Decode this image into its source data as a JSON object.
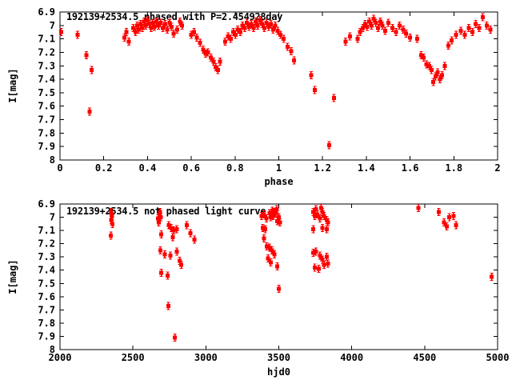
{
  "figure": {
    "background_color": "#ffffff",
    "axis_color": "#000000",
    "point_color": "#ff0000"
  },
  "chart_data": [
    {
      "type": "scatter",
      "title": "192139+2534.5 phased with P=2.454928day",
      "xlabel": "phase",
      "ylabel": "I[mag]",
      "xlim": [
        0,
        2
      ],
      "ylim_top_to_bottom": [
        6.9,
        8
      ],
      "grid": false,
      "legend": "none",
      "marker": "red-square-with-errorbar",
      "xticks": [
        0,
        0.2,
        0.4,
        0.6,
        0.8,
        1,
        1.2,
        1.4,
        1.6,
        1.8,
        2
      ],
      "xtick_labels": [
        "0",
        "0.2",
        "0.4",
        "0.6",
        "0.8",
        "1",
        "1.2",
        "1.4",
        "1.6",
        "1.8",
        "2"
      ],
      "yticks": [
        6.9,
        7,
        7.1,
        7.2,
        7.3,
        7.4,
        7.5,
        7.6,
        7.7,
        7.8,
        7.9,
        8
      ],
      "ytick_labels": [
        "6.9",
        "7",
        "7.1",
        "7.2",
        "7.3",
        "7.4",
        "7.5",
        "7.6",
        "7.7",
        "7.8",
        "7.9",
        "8"
      ],
      "points": [
        [
          0.005,
          7.05
        ],
        [
          0.08,
          7.07
        ],
        [
          0.12,
          7.22
        ],
        [
          0.135,
          7.64
        ],
        [
          0.145,
          7.33
        ],
        [
          0.295,
          7.09
        ],
        [
          0.303,
          7.05
        ],
        [
          0.315,
          7.12
        ],
        [
          0.335,
          7.02
        ],
        [
          0.345,
          7.05
        ],
        [
          0.352,
          7.0
        ],
        [
          0.36,
          7.03
        ],
        [
          0.368,
          6.99
        ],
        [
          0.376,
          7.02
        ],
        [
          0.384,
          6.97
        ],
        [
          0.392,
          7.0
        ],
        [
          0.4,
          6.96
        ],
        [
          0.408,
          6.99
        ],
        [
          0.416,
          7.02
        ],
        [
          0.424,
          6.98
        ],
        [
          0.432,
          7.01
        ],
        [
          0.44,
          6.97
        ],
        [
          0.45,
          7.0
        ],
        [
          0.46,
          6.98
        ],
        [
          0.47,
          7.02
        ],
        [
          0.48,
          6.99
        ],
        [
          0.49,
          7.03
        ],
        [
          0.5,
          6.98
        ],
        [
          0.51,
          7.01
        ],
        [
          0.52,
          7.06
        ],
        [
          0.535,
          7.03
        ],
        [
          0.548,
          6.97
        ],
        [
          0.558,
          7.0
        ],
        [
          0.6,
          7.07
        ],
        [
          0.613,
          7.05
        ],
        [
          0.625,
          7.09
        ],
        [
          0.64,
          7.13
        ],
        [
          0.654,
          7.18
        ],
        [
          0.665,
          7.21
        ],
        [
          0.676,
          7.2
        ],
        [
          0.69,
          7.24
        ],
        [
          0.702,
          7.27
        ],
        [
          0.712,
          7.31
        ],
        [
          0.722,
          7.33
        ],
        [
          0.732,
          7.27
        ],
        [
          0.755,
          7.12
        ],
        [
          0.768,
          7.08
        ],
        [
          0.78,
          7.1
        ],
        [
          0.792,
          7.05
        ],
        [
          0.802,
          7.07
        ],
        [
          0.812,
          7.03
        ],
        [
          0.824,
          7.05
        ],
        [
          0.834,
          7.0
        ],
        [
          0.844,
          7.02
        ],
        [
          0.854,
          6.98
        ],
        [
          0.864,
          7.01
        ],
        [
          0.874,
          6.99
        ],
        [
          0.884,
          7.02
        ],
        [
          0.894,
          6.97
        ],
        [
          0.904,
          7.0
        ],
        [
          0.914,
          6.96
        ],
        [
          0.924,
          6.99
        ],
        [
          0.934,
          7.02
        ],
        [
          0.944,
          6.98
        ],
        [
          0.954,
          7.01
        ],
        [
          0.964,
          6.99
        ],
        [
          0.974,
          7.03
        ],
        [
          0.984,
          7.0
        ],
        [
          0.995,
          7.04
        ],
        [
          1.008,
          7.07
        ],
        [
          1.022,
          7.1
        ],
        [
          1.04,
          7.16
        ],
        [
          1.056,
          7.19
        ],
        [
          1.07,
          7.26
        ],
        [
          1.148,
          7.37
        ],
        [
          1.164,
          7.48
        ],
        [
          1.23,
          7.89
        ],
        [
          1.252,
          7.54
        ],
        [
          1.305,
          7.12
        ],
        [
          1.325,
          7.08
        ],
        [
          1.36,
          7.1
        ],
        [
          1.372,
          7.05
        ],
        [
          1.384,
          7.02
        ],
        [
          1.394,
          6.99
        ],
        [
          1.404,
          7.01
        ],
        [
          1.414,
          6.97
        ],
        [
          1.424,
          7.0
        ],
        [
          1.434,
          6.95
        ],
        [
          1.444,
          6.98
        ],
        [
          1.454,
          7.02
        ],
        [
          1.464,
          6.97
        ],
        [
          1.474,
          7.0
        ],
        [
          1.486,
          7.04
        ],
        [
          1.5,
          6.98
        ],
        [
          1.52,
          7.02
        ],
        [
          1.536,
          7.05
        ],
        [
          1.552,
          7.0
        ],
        [
          1.568,
          7.03
        ],
        [
          1.582,
          7.06
        ],
        [
          1.6,
          7.09
        ],
        [
          1.632,
          7.1
        ],
        [
          1.65,
          7.22
        ],
        [
          1.662,
          7.24
        ],
        [
          1.675,
          7.29
        ],
        [
          1.688,
          7.3
        ],
        [
          1.698,
          7.33
        ],
        [
          1.706,
          7.42
        ],
        [
          1.716,
          7.38
        ],
        [
          1.726,
          7.35
        ],
        [
          1.736,
          7.4
        ],
        [
          1.746,
          7.37
        ],
        [
          1.758,
          7.3
        ],
        [
          1.775,
          7.15
        ],
        [
          1.79,
          7.11
        ],
        [
          1.81,
          7.07
        ],
        [
          1.832,
          7.04
        ],
        [
          1.85,
          7.07
        ],
        [
          1.868,
          7.02
        ],
        [
          1.885,
          7.05
        ],
        [
          1.9,
          6.99
        ],
        [
          1.915,
          7.02
        ],
        [
          1.932,
          6.94
        ],
        [
          1.95,
          7.0
        ],
        [
          1.968,
          7.03
        ]
      ]
    },
    {
      "type": "scatter",
      "title": "192139+2534.5 not phased light curve",
      "xlabel": "hjd0",
      "ylabel": "I[mag]",
      "xlim": [
        2000,
        5000
      ],
      "ylim_top_to_bottom": [
        6.9,
        8
      ],
      "grid": false,
      "legend": "none",
      "marker": "red-square-with-errorbar",
      "xticks": [
        2000,
        2500,
        3000,
        3500,
        4000,
        4500,
        5000
      ],
      "xtick_labels": [
        "2000",
        "2500",
        "3000",
        "3500",
        "4000",
        "4500",
        "5000"
      ],
      "yticks": [
        6.9,
        7,
        7.1,
        7.2,
        7.3,
        7.4,
        7.5,
        7.6,
        7.7,
        7.8,
        7.9,
        8
      ],
      "ytick_labels": [
        "6.9",
        "7",
        "7.1",
        "7.2",
        "7.3",
        "7.4",
        "7.5",
        "7.6",
        "7.7",
        "7.8",
        "7.9",
        "8"
      ],
      "points": [
        [
          2350,
          6.96
        ],
        [
          2356,
          6.99
        ],
        [
          2352,
          7.02
        ],
        [
          2360,
          7.05
        ],
        [
          2349,
          7.14
        ],
        [
          2672,
          7.01
        ],
        [
          2676,
          7.04
        ],
        [
          2682,
          6.98
        ],
        [
          2686,
          6.96
        ],
        [
          2690,
          7.0
        ],
        [
          2694,
          7.13
        ],
        [
          2688,
          7.25
        ],
        [
          2695,
          7.42
        ],
        [
          2718,
          7.28
        ],
        [
          2738,
          7.44
        ],
        [
          2742,
          7.67
        ],
        [
          2745,
          7.06
        ],
        [
          2756,
          7.29
        ],
        [
          2762,
          7.08
        ],
        [
          2772,
          7.15
        ],
        [
          2780,
          7.1
        ],
        [
          2788,
          7.91
        ],
        [
          2800,
          7.09
        ],
        [
          2802,
          7.26
        ],
        [
          2820,
          7.33
        ],
        [
          2831,
          7.36
        ],
        [
          2868,
          7.06
        ],
        [
          2895,
          7.12
        ],
        [
          2922,
          7.17
        ],
        [
          3382,
          6.99
        ],
        [
          3390,
          7.08
        ],
        [
          3398,
          6.98
        ],
        [
          3398,
          7.16
        ],
        [
          3408,
          7.09
        ],
        [
          3416,
          7.01
        ],
        [
          3417,
          7.22
        ],
        [
          3426,
          7.31
        ],
        [
          3436,
          6.97
        ],
        [
          3436,
          7.23
        ],
        [
          3444,
          7.0
        ],
        [
          3444,
          7.34
        ],
        [
          3453,
          7.25
        ],
        [
          3455,
          6.95
        ],
        [
          3462,
          6.99
        ],
        [
          3470,
          6.96
        ],
        [
          3471,
          7.28
        ],
        [
          3480,
          6.97
        ],
        [
          3485,
          6.94
        ],
        [
          3490,
          7.03
        ],
        [
          3490,
          7.37
        ],
        [
          3500,
          7.0
        ],
        [
          3500,
          7.54
        ],
        [
          3508,
          7.04
        ],
        [
          3737,
          6.96
        ],
        [
          3737,
          7.09
        ],
        [
          3737,
          7.27
        ],
        [
          3746,
          6.99
        ],
        [
          3746,
          7.38
        ],
        [
          3755,
          6.94
        ],
        [
          3755,
          7.26
        ],
        [
          3764,
          6.98
        ],
        [
          3773,
          7.39
        ],
        [
          3782,
          7.01
        ],
        [
          3782,
          7.29
        ],
        [
          3790,
          6.93
        ],
        [
          3800,
          6.96
        ],
        [
          3800,
          7.08
        ],
        [
          3800,
          7.32
        ],
        [
          3810,
          6.99
        ],
        [
          3810,
          7.36
        ],
        [
          3828,
          7.02
        ],
        [
          3828,
          7.09
        ],
        [
          3828,
          7.3
        ],
        [
          3837,
          7.04
        ],
        [
          3837,
          7.35
        ],
        [
          4458,
          6.93
        ],
        [
          4596,
          6.96
        ],
        [
          4633,
          7.04
        ],
        [
          4651,
          7.07
        ],
        [
          4669,
          7.0
        ],
        [
          4697,
          6.99
        ],
        [
          4715,
          7.06
        ],
        [
          4960,
          7.45
        ]
      ]
    }
  ]
}
